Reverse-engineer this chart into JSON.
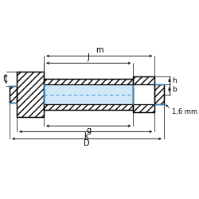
{
  "bg_color": "#ffffff",
  "line_color": "#000000",
  "blue_fill": "#d0e8f8",
  "blue_line": "#3388cc",
  "fig_w": 2.5,
  "fig_h": 2.5,
  "dpi": 100,
  "labels": {
    "m": "m",
    "J": "J",
    "g": "g",
    "k": "k",
    "D": "D",
    "l": "l",
    "b": "b",
    "h": "h",
    "note": "1,6 mm"
  }
}
